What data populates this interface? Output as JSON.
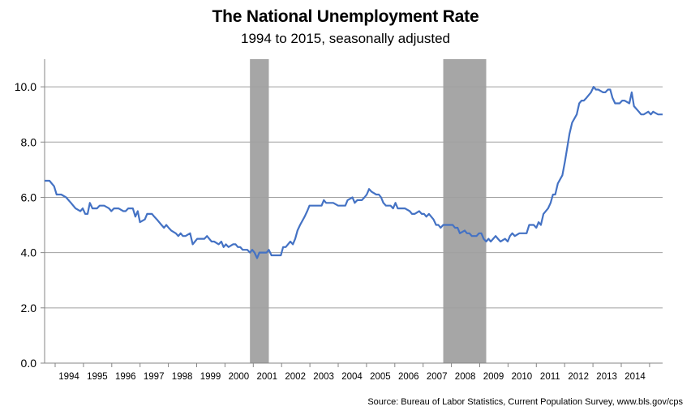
{
  "chart_data": {
    "type": "line",
    "title": "The National Unemployment Rate",
    "subtitle": "1994 to 2015, seasonally adjusted",
    "xlabel": "",
    "ylabel": "",
    "source": "Source: Bureau of Labor Statistics, Current Population Survey, www.bls.gov/cps",
    "ylim": [
      0,
      11
    ],
    "yticks": [
      "0.0",
      "2.0",
      "4.0",
      "6.0",
      "8.0",
      "10.0"
    ],
    "ytick_values": [
      0,
      2,
      4,
      6,
      8,
      10
    ],
    "xlim": [
      1994.0,
      2015.58
    ],
    "x_tick_labels": [
      "1994",
      "1995",
      "1996",
      "1997",
      "1998",
      "1999",
      "2000",
      "2001",
      "2002",
      "2003",
      "2004",
      "2005",
      "2006",
      "2007",
      "2008",
      "2009",
      "2010",
      "2011",
      "2012",
      "2013",
      "2014"
    ],
    "grid": true,
    "legend": "none",
    "line_color": "#4472c4",
    "recession_color": "#a6a6a6",
    "recessions": [
      [
        2001.17,
        2001.83
      ],
      [
        2007.92,
        2009.42
      ]
    ],
    "series": [
      {
        "values": [
          [
            1994.0,
            6.6
          ],
          [
            1994.17,
            6.6
          ],
          [
            1994.33,
            6.4
          ],
          [
            1994.42,
            6.1
          ],
          [
            1994.58,
            6.1
          ],
          [
            1994.75,
            6.0
          ],
          [
            1994.92,
            5.8
          ],
          [
            1995.08,
            5.6
          ],
          [
            1995.25,
            5.5
          ],
          [
            1995.33,
            5.6
          ],
          [
            1995.42,
            5.4
          ],
          [
            1995.5,
            5.4
          ],
          [
            1995.58,
            5.8
          ],
          [
            1995.67,
            5.6
          ],
          [
            1995.83,
            5.6
          ],
          [
            1995.92,
            5.7
          ],
          [
            1996.08,
            5.7
          ],
          [
            1996.25,
            5.6
          ],
          [
            1996.33,
            5.5
          ],
          [
            1996.42,
            5.6
          ],
          [
            1996.58,
            5.6
          ],
          [
            1996.75,
            5.5
          ],
          [
            1996.83,
            5.5
          ],
          [
            1996.92,
            5.6
          ],
          [
            1997.08,
            5.6
          ],
          [
            1997.17,
            5.3
          ],
          [
            1997.25,
            5.5
          ],
          [
            1997.33,
            5.1
          ],
          [
            1997.5,
            5.2
          ],
          [
            1997.58,
            5.4
          ],
          [
            1997.75,
            5.4
          ],
          [
            1997.83,
            5.3
          ],
          [
            1997.92,
            5.2
          ],
          [
            1998.08,
            5.0
          ],
          [
            1998.17,
            4.9
          ],
          [
            1998.25,
            5.0
          ],
          [
            1998.33,
            4.9
          ],
          [
            1998.42,
            4.8
          ],
          [
            1998.58,
            4.7
          ],
          [
            1998.67,
            4.6
          ],
          [
            1998.75,
            4.7
          ],
          [
            1998.83,
            4.6
          ],
          [
            1998.92,
            4.6
          ],
          [
            1999.08,
            4.7
          ],
          [
            1999.17,
            4.3
          ],
          [
            1999.25,
            4.4
          ],
          [
            1999.33,
            4.5
          ],
          [
            1999.5,
            4.5
          ],
          [
            1999.58,
            4.5
          ],
          [
            1999.67,
            4.6
          ],
          [
            1999.75,
            4.5
          ],
          [
            1999.83,
            4.4
          ],
          [
            1999.92,
            4.4
          ],
          [
            2000.08,
            4.3
          ],
          [
            2000.17,
            4.4
          ],
          [
            2000.25,
            4.2
          ],
          [
            2000.33,
            4.3
          ],
          [
            2000.42,
            4.2
          ],
          [
            2000.58,
            4.3
          ],
          [
            2000.67,
            4.3
          ],
          [
            2000.75,
            4.2
          ],
          [
            2000.83,
            4.2
          ],
          [
            2000.92,
            4.1
          ],
          [
            2001.08,
            4.1
          ],
          [
            2001.17,
            4.0
          ],
          [
            2001.25,
            4.1
          ],
          [
            2001.33,
            4.0
          ],
          [
            2001.42,
            3.8
          ],
          [
            2001.5,
            4.0
          ],
          [
            2001.58,
            4.0
          ],
          [
            2001.75,
            4.0
          ],
          [
            2001.83,
            4.1
          ],
          [
            2001.92,
            3.9
          ],
          [
            2002.08,
            3.9
          ],
          [
            2002.25,
            3.9
          ],
          [
            2002.33,
            4.2
          ],
          [
            2002.42,
            4.2
          ],
          [
            2002.5,
            4.3
          ],
          [
            2002.58,
            4.4
          ],
          [
            2002.67,
            4.3
          ],
          [
            2002.75,
            4.5
          ],
          [
            2002.83,
            4.8
          ],
          [
            2002.92,
            5.0
          ],
          [
            2003.08,
            5.3
          ],
          [
            2003.17,
            5.5
          ],
          [
            2003.25,
            5.7
          ],
          [
            2003.42,
            5.7
          ],
          [
            2003.5,
            5.7
          ],
          [
            2003.67,
            5.7
          ],
          [
            2003.75,
            5.9
          ],
          [
            2003.83,
            5.8
          ],
          [
            2003.92,
            5.8
          ],
          [
            2004.08,
            5.8
          ],
          [
            2004.25,
            5.7
          ],
          [
            2004.42,
            5.7
          ],
          [
            2004.5,
            5.7
          ],
          [
            2004.58,
            5.9
          ],
          [
            2004.75,
            6.0
          ],
          [
            2004.83,
            5.8
          ],
          [
            2004.92,
            5.9
          ],
          [
            2005.08,
            5.9
          ],
          [
            2005.17,
            6.0
          ],
          [
            2005.25,
            6.1
          ],
          [
            2005.33,
            6.3
          ],
          [
            2005.42,
            6.2
          ],
          [
            2005.58,
            6.1
          ],
          [
            2005.67,
            6.1
          ],
          [
            2005.75,
            6.0
          ],
          [
            2005.83,
            5.8
          ],
          [
            2005.92,
            5.7
          ],
          [
            2006.08,
            5.7
          ],
          [
            2006.17,
            5.6
          ],
          [
            2006.25,
            5.8
          ],
          [
            2006.33,
            5.6
          ],
          [
            2006.5,
            5.6
          ],
          [
            2006.58,
            5.6
          ],
          [
            2006.75,
            5.5
          ],
          [
            2006.83,
            5.4
          ],
          [
            2006.92,
            5.4
          ],
          [
            2007.08,
            5.5
          ],
          [
            2007.17,
            5.4
          ],
          [
            2007.25,
            5.4
          ],
          [
            2007.33,
            5.3
          ],
          [
            2007.42,
            5.4
          ],
          [
            2007.58,
            5.2
          ],
          [
            2007.67,
            5.0
          ],
          [
            2007.75,
            5.0
          ],
          [
            2007.83,
            4.9
          ],
          [
            2007.92,
            5.0
          ],
          [
            2008.08,
            5.0
          ],
          [
            2008.25,
            5.0
          ],
          [
            2008.33,
            4.9
          ],
          [
            2008.42,
            4.9
          ],
          [
            2008.5,
            4.7
          ],
          [
            2008.67,
            4.8
          ],
          [
            2008.75,
            4.7
          ],
          [
            2008.83,
            4.7
          ],
          [
            2008.92,
            4.6
          ],
          [
            2009.08,
            4.6
          ],
          [
            2009.17,
            4.7
          ],
          [
            2009.25,
            4.7
          ],
          [
            2009.33,
            4.5
          ],
          [
            2009.42,
            4.4
          ],
          [
            2009.5,
            4.5
          ],
          [
            2009.58,
            4.4
          ],
          [
            2009.75,
            4.6
          ],
          [
            2009.83,
            4.5
          ],
          [
            2009.92,
            4.4
          ],
          [
            2010.08,
            4.5
          ],
          [
            2010.17,
            4.4
          ],
          [
            2010.25,
            4.6
          ],
          [
            2010.33,
            4.7
          ],
          [
            2010.42,
            4.6
          ],
          [
            2010.58,
            4.7
          ],
          [
            2010.75,
            4.7
          ],
          [
            2010.83,
            4.7
          ],
          [
            2010.92,
            5.0
          ],
          [
            2011.08,
            5.0
          ],
          [
            2011.17,
            4.9
          ],
          [
            2011.25,
            5.1
          ],
          [
            2011.33,
            5.0
          ],
          [
            2011.42,
            5.4
          ],
          [
            2011.58,
            5.6
          ],
          [
            2011.67,
            5.8
          ],
          [
            2011.75,
            6.1
          ],
          [
            2011.83,
            6.1
          ],
          [
            2011.92,
            6.5
          ],
          [
            2012.08,
            6.8
          ],
          [
            2012.17,
            7.3
          ],
          [
            2012.25,
            7.8
          ],
          [
            2012.33,
            8.3
          ],
          [
            2012.42,
            8.7
          ],
          [
            2012.58,
            9.0
          ],
          [
            2012.67,
            9.4
          ],
          [
            2012.75,
            9.5
          ],
          [
            2012.83,
            9.5
          ],
          [
            2012.92,
            9.6
          ],
          [
            2013.08,
            9.8
          ],
          [
            2013.17,
            10.0
          ],
          [
            2013.25,
            9.9
          ],
          [
            2013.33,
            9.9
          ],
          [
            2013.5,
            9.8
          ],
          [
            2013.58,
            9.8
          ],
          [
            2013.67,
            9.9
          ],
          [
            2013.75,
            9.9
          ],
          [
            2013.83,
            9.6
          ],
          [
            2013.92,
            9.4
          ],
          [
            2014.08,
            9.4
          ],
          [
            2014.17,
            9.5
          ],
          [
            2014.25,
            9.5
          ],
          [
            2014.42,
            9.4
          ],
          [
            2014.5,
            9.8
          ],
          [
            2014.58,
            9.3
          ],
          [
            2014.75,
            9.1
          ],
          [
            2014.83,
            9.0
          ],
          [
            2014.92,
            9.0
          ],
          [
            2015.08,
            9.1
          ],
          [
            2015.17,
            9.0
          ],
          [
            2015.25,
            9.1
          ],
          [
            2015.42,
            9.0
          ],
          [
            2015.58,
            9.0
          ]
        ]
      }
    ]
  }
}
